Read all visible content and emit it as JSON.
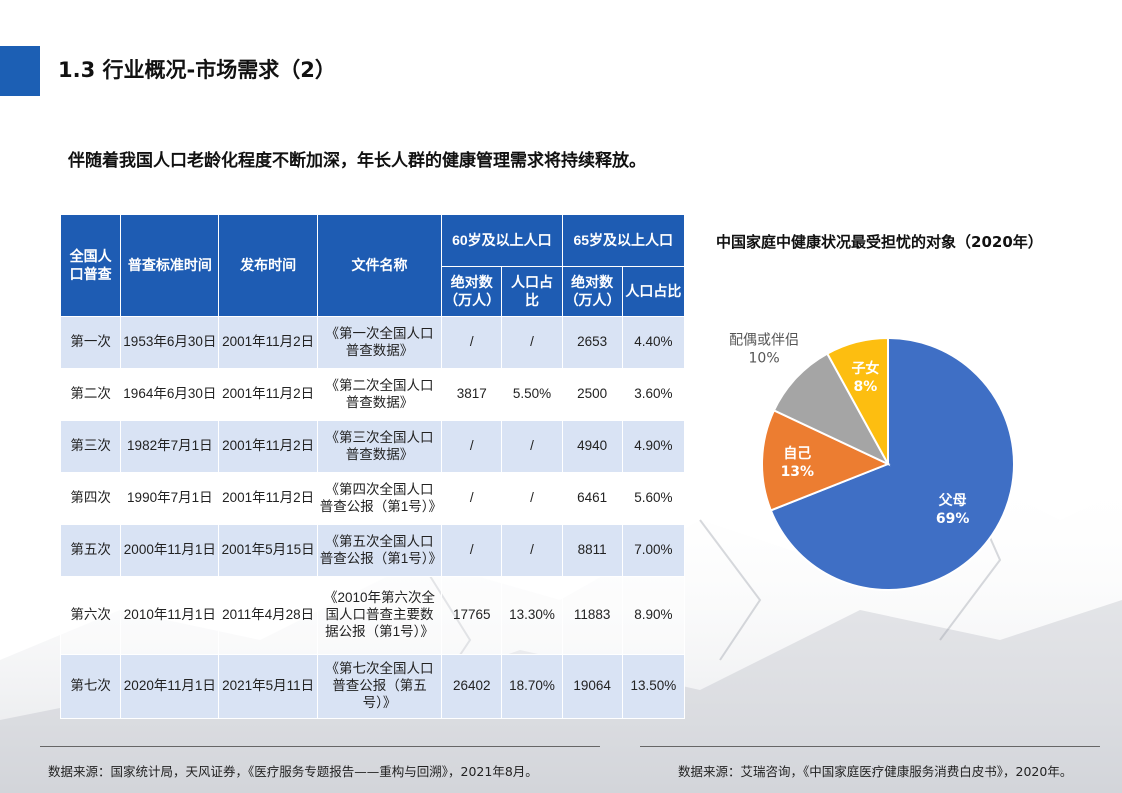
{
  "header": {
    "title": "1.3 行业概况-市场需求（2）"
  },
  "subtitle": "伴随着我国人口老龄化程度不断加深，年长人群的健康管理需求将持续释放。",
  "table": {
    "headers": {
      "census": "全国人口普查",
      "standard_time": "普查标准时间",
      "release_time": "发布时间",
      "doc_name": "文件名称",
      "group_60": "60岁及以上人口",
      "group_65": "65岁及以上人口",
      "abs_count": "绝对数（万人）",
      "ratio": "人口占比"
    },
    "rows": [
      {
        "census": "第一次",
        "standard_time": "1953年6月30日",
        "release_time": "2001年11月2日",
        "doc_name": "《第一次全国人口普查数据》",
        "abs60": "/",
        "ratio60": "/",
        "abs65": "2653",
        "ratio65": "4.40%"
      },
      {
        "census": "第二次",
        "standard_time": "1964年6月30日",
        "release_time": "2001年11月2日",
        "doc_name": "《第二次全国人口普查数据》",
        "abs60": "3817",
        "ratio60": "5.50%",
        "abs65": "2500",
        "ratio65": "3.60%"
      },
      {
        "census": "第三次",
        "standard_time": "1982年7月1日",
        "release_time": "2001年11月2日",
        "doc_name": "《第三次全国人口普查数据》",
        "abs60": "/",
        "ratio60": "/",
        "abs65": "4940",
        "ratio65": "4.90%"
      },
      {
        "census": "第四次",
        "standard_time": "1990年7月1日",
        "release_time": "2001年11月2日",
        "doc_name": "《第四次全国人口普查公报（第1号）》",
        "abs60": "/",
        "ratio60": "/",
        "abs65": "6461",
        "ratio65": "5.60%"
      },
      {
        "census": "第五次",
        "standard_time": "2000年11月1日",
        "release_time": "2001年5月15日",
        "doc_name": "《第五次全国人口普查公报（第1号）》",
        "abs60": "/",
        "ratio60": "/",
        "abs65": "8811",
        "ratio65": "7.00%"
      },
      {
        "census": "第六次",
        "standard_time": "2010年11月1日",
        "release_time": "2011年4月28日",
        "doc_name": "《2010年第六次全国人口普查主要数据公报（第1号）》",
        "abs60": "17765",
        "ratio60": "13.30%",
        "abs65": "11883",
        "ratio65": "8.90%"
      },
      {
        "census": "第七次",
        "standard_time": "2020年11月1日",
        "release_time": "2021年5月11日",
        "doc_name": "《第七次全国人口普查公报（第五号）》",
        "abs60": "26402",
        "ratio60": "18.70%",
        "abs65": "19064",
        "ratio65": "13.50%"
      }
    ]
  },
  "chart_data": {
    "type": "pie",
    "title": "中国家庭中健康状况最受担忧的对象（2020年）",
    "slices": [
      {
        "label": "父母",
        "value": 69,
        "display": "69%",
        "color": "#3f6fc5"
      },
      {
        "label": "自己",
        "value": 13,
        "display": "13%",
        "color": "#ec7d31"
      },
      {
        "label": "配偶或伴侣",
        "value": 10,
        "display": "10%",
        "color": "#a5a5a5"
      },
      {
        "label": "子女",
        "value": 8,
        "display": "8%",
        "color": "#fdbe10"
      }
    ]
  },
  "sources": {
    "left": "数据来源：国家统计局，天风证券，《医疗服务专题报告——重构与回溯》，2021年8月。",
    "right": "数据来源：艾瑞咨询，《中国家庭医疗健康服务消费白皮书》，2020年。"
  }
}
